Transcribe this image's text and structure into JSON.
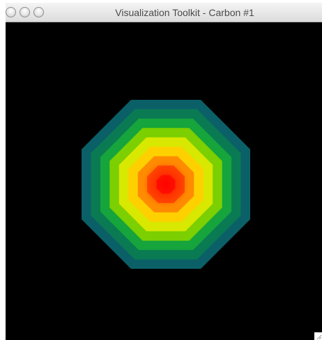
{
  "window": {
    "title": "Visualization Toolkit - Carbon #1",
    "traffic_lights": [
      "close-icon",
      "minimize-icon",
      "zoom-icon"
    ]
  },
  "render": {
    "background": "#000000",
    "shape": "octagon",
    "color_scale": [
      "#ff0000",
      "#ff4a00",
      "#ff8c00",
      "#ffd000",
      "#d8e800",
      "#7ccf00",
      "#16a43c",
      "#0a7a52",
      "#0b6068"
    ]
  }
}
